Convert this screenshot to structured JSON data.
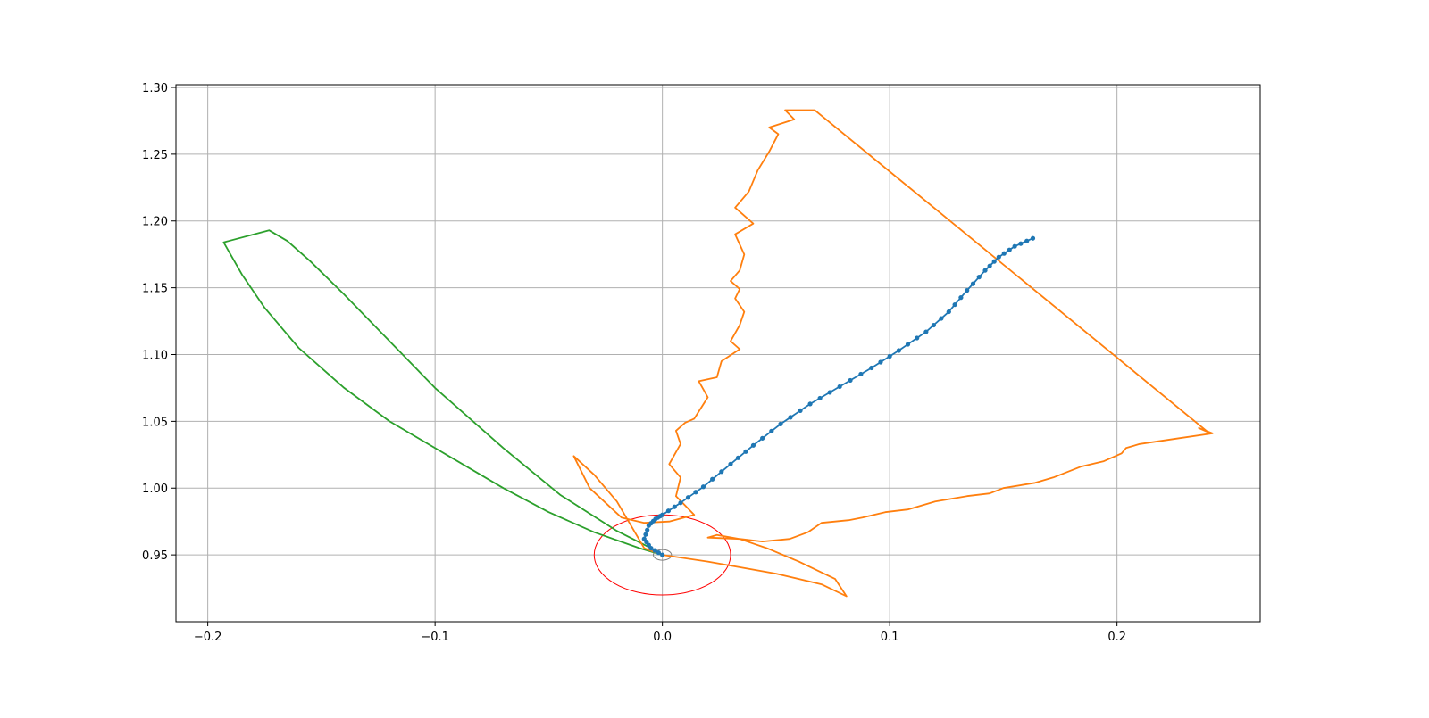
{
  "chart_data": {
    "type": "line",
    "title": "",
    "xlabel": "",
    "ylabel": "",
    "xlim": [
      -0.214,
      0.263
    ],
    "ylim": [
      0.9,
      1.302
    ],
    "xticks": [
      -0.2,
      -0.1,
      0.0,
      0.1,
      0.2
    ],
    "xtick_labels": [
      "−0.2",
      "−0.1",
      "0.0",
      "0.1",
      "0.2"
    ],
    "yticks": [
      0.95,
      1.0,
      1.05,
      1.1,
      1.15,
      1.2,
      1.25,
      1.3
    ],
    "ytick_labels": [
      "0.95",
      "1.00",
      "1.05",
      "1.10",
      "1.15",
      "1.20",
      "1.25",
      "1.30"
    ],
    "grid": true,
    "colors": {
      "blue": "#1f77b4",
      "orange": "#ff7f0e",
      "green": "#2ca02c",
      "red_circle": "#ff0000",
      "gray_circle": "#808080",
      "grid": "#b0b0b0"
    },
    "series": [
      {
        "color": "#1f77b4",
        "marker": "dot",
        "x": [
          0.0,
          -0.005,
          -0.008,
          -0.006,
          -0.003,
          0.0,
          0.008,
          0.018,
          0.03,
          0.04,
          0.052,
          0.065,
          0.078,
          0.092,
          0.104,
          0.116,
          0.126,
          0.134,
          0.142,
          0.148,
          0.155,
          0.163
        ],
        "y": [
          0.95,
          0.955,
          0.962,
          0.972,
          0.977,
          0.98,
          0.989,
          1.001,
          1.018,
          1.032,
          1.048,
          1.063,
          1.076,
          1.09,
          1.103,
          1.117,
          1.132,
          1.148,
          1.163,
          1.173,
          1.181,
          1.187
        ]
      },
      {
        "color": "#ff7f0e",
        "marker": "none",
        "x": [
          0.0,
          -0.008,
          -0.02,
          -0.03,
          -0.039,
          -0.032,
          -0.018,
          -0.008,
          0.003,
          0.014,
          0.006,
          0.008,
          0.003,
          0.008,
          0.006,
          0.01,
          0.014,
          0.02,
          0.016,
          0.024,
          0.026,
          0.034,
          0.03,
          0.034,
          0.036,
          0.032,
          0.034,
          0.03,
          0.034,
          0.036,
          0.032,
          0.04,
          0.032,
          0.038,
          0.042,
          0.047,
          0.051,
          0.047,
          0.058,
          0.054,
          0.058,
          0.059,
          0.062,
          0.058,
          0.062,
          0.06,
          0.064,
          0.067,
          0.24,
          0.236,
          0.242,
          0.226,
          0.21,
          0.204,
          0.202,
          0.194,
          0.184,
          0.172,
          0.164,
          0.15,
          0.144,
          0.134,
          0.12,
          0.112,
          0.108,
          0.098,
          0.088,
          0.082,
          0.07,
          0.064,
          0.056,
          0.044,
          0.034,
          0.024,
          0.02,
          0.034,
          0.046,
          0.06,
          0.076,
          0.081,
          0.07,
          0.05,
          0.02,
          0.0
        ],
        "y": [
          0.95,
          0.955,
          0.99,
          1.01,
          1.024,
          1.0,
          0.978,
          0.974,
          0.975,
          0.98,
          0.994,
          1.008,
          1.018,
          1.033,
          1.043,
          1.049,
          1.052,
          1.068,
          1.08,
          1.083,
          1.095,
          1.104,
          1.11,
          1.122,
          1.132,
          1.142,
          1.149,
          1.155,
          1.163,
          1.175,
          1.19,
          1.198,
          1.21,
          1.222,
          1.238,
          1.252,
          1.265,
          1.27,
          1.276,
          1.283,
          1.283,
          1.283,
          1.283,
          1.283,
          1.283,
          1.283,
          1.283,
          1.283,
          1.042,
          1.045,
          1.041,
          1.037,
          1.033,
          1.03,
          1.026,
          1.02,
          1.016,
          1.008,
          1.004,
          1.0,
          0.996,
          0.994,
          0.99,
          0.986,
          0.984,
          0.982,
          0.978,
          0.976,
          0.974,
          0.967,
          0.962,
          0.96,
          0.962,
          0.965,
          0.963,
          0.962,
          0.955,
          0.945,
          0.932,
          0.919,
          0.928,
          0.936,
          0.945,
          0.95
        ]
      },
      {
        "color": "#2ca02c",
        "marker": "none",
        "x": [
          0.0,
          -0.01,
          -0.03,
          -0.05,
          -0.07,
          -0.095,
          -0.12,
          -0.14,
          -0.16,
          -0.175,
          -0.185,
          -0.193,
          -0.173,
          -0.165,
          -0.155,
          -0.14,
          -0.12,
          -0.1,
          -0.07,
          -0.045,
          -0.02,
          -0.005,
          0.0
        ],
        "y": [
          0.95,
          0.955,
          0.967,
          0.982,
          1.0,
          1.025,
          1.05,
          1.075,
          1.105,
          1.135,
          1.16,
          1.184,
          1.193,
          1.185,
          1.17,
          1.145,
          1.11,
          1.075,
          1.03,
          0.995,
          0.968,
          0.955,
          0.95
        ]
      }
    ],
    "annotations": [
      {
        "shape": "circle",
        "color": "#ff0000",
        "center": [
          0.0,
          0.95
        ],
        "radius": 0.03
      },
      {
        "shape": "circle",
        "color": "#808080",
        "center": [
          0.0,
          0.95
        ],
        "radius": 0.004
      }
    ]
  }
}
